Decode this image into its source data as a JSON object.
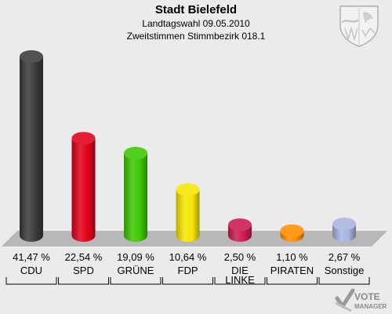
{
  "header": {
    "title": "Stadt Bielefeld",
    "subtitle1": "Landtagswahl 09.05.2010",
    "subtitle2": "Zweitstimmen Stimmbezirk 018.1"
  },
  "logos": {
    "crest": "nrw-crest",
    "brand_line1": "VOTE",
    "brand_line2": "MANAGER"
  },
  "chart_data": {
    "type": "bar",
    "title": "Stadt Bielefeld",
    "subtitle": "Landtagswahl 09.05.2010 – Zweitstimmen Stimmbezirk 018.1",
    "categories": [
      "CDU",
      "SPD",
      "GRÜNE",
      "FDP",
      "DIE LINKE",
      "PIRATEN",
      "Sonstige"
    ],
    "values": [
      41.47,
      22.54,
      19.09,
      10.64,
      2.5,
      1.1,
      2.67
    ],
    "value_labels": [
      "41,47 %",
      "22,54 %",
      "19,09 %",
      "10,64 %",
      "2,50 %",
      "1,10 %",
      "2,67 %"
    ],
    "colors": [
      "#3a3a3a",
      "#e0001a",
      "#3cc800",
      "#f5e600",
      "#cc1a50",
      "#ff8c00",
      "#a8b4e0"
    ],
    "ylim": [
      0,
      41.47
    ],
    "grid": false,
    "legend": "none"
  }
}
